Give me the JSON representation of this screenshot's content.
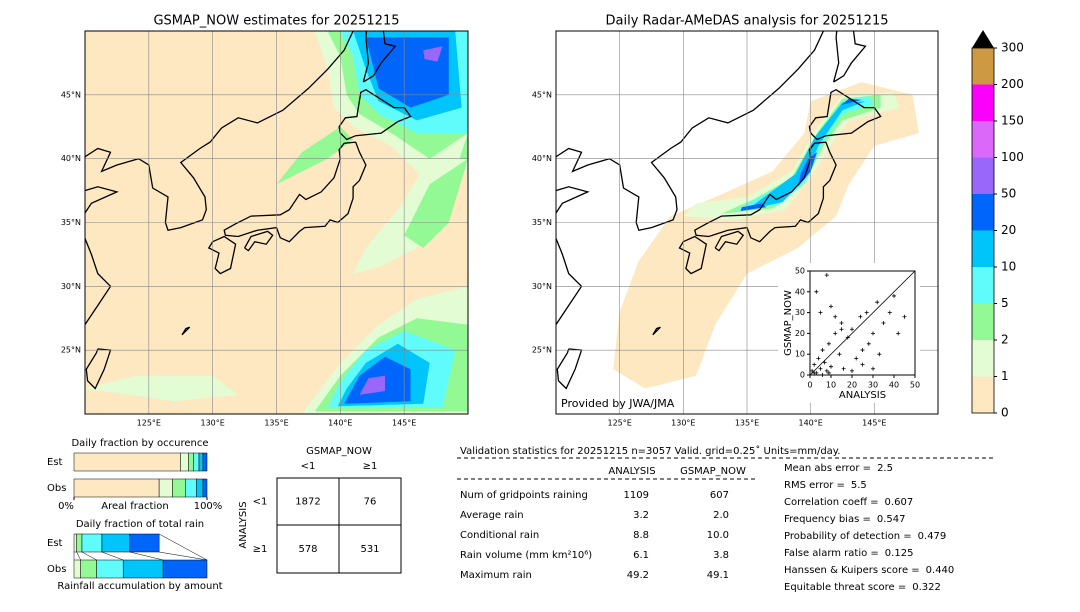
{
  "map_axes": {
    "xlim": [
      120,
      150
    ],
    "ylim": [
      20,
      50
    ],
    "xticks": [
      {
        "value": 125,
        "label": "125°E"
      },
      {
        "value": 130,
        "label": "130°E"
      },
      {
        "value": 135,
        "label": "135°E"
      },
      {
        "value": 140,
        "label": "140°E"
      },
      {
        "value": 145,
        "label": "145°E"
      }
    ],
    "yticks": [
      {
        "value": 25,
        "label": "25°N"
      },
      {
        "value": 30,
        "label": "30°N"
      },
      {
        "value": 35,
        "label": "35°N"
      },
      {
        "value": 40,
        "label": "40°N"
      },
      {
        "value": 45,
        "label": "45°N"
      }
    ],
    "grid": true
  },
  "map_left": {
    "title": "GSMAP_NOW estimates for 20251215"
  },
  "map_right": {
    "title": "Daily Radar-AMeDAS analysis for 20251215",
    "credit": "Provided by JWA/JMA"
  },
  "colorbar": {
    "levels": [
      0,
      1,
      2,
      5,
      10,
      20,
      50,
      100,
      150,
      200,
      300
    ],
    "colors": [
      "#fde8c1",
      "#e4fcd4",
      "#93f994",
      "#60fcfc",
      "#00c5fa",
      "#0066fb",
      "#9a67fb",
      "#dc67fb",
      "#fb00fb",
      "#cd9a42"
    ],
    "extend_color": "#000000"
  },
  "scatter": {
    "type": "scatter",
    "xlabel": "ANALYSIS",
    "ylabel": "GSMAP_NOW",
    "xlim": [
      0,
      50
    ],
    "ylim": [
      0,
      50
    ],
    "xticks": [
      0,
      10,
      20,
      30,
      40,
      50
    ],
    "yticks": [
      0,
      10,
      20,
      30,
      40,
      50
    ],
    "x": [
      1,
      2,
      3,
      4,
      5,
      6,
      7,
      8,
      9,
      10,
      12,
      14,
      15,
      16,
      18,
      20,
      22,
      24,
      25,
      27,
      28,
      30,
      32,
      33,
      35,
      38,
      40,
      3,
      5,
      8,
      10,
      12,
      15,
      2,
      6,
      9,
      20,
      25,
      30,
      42,
      45
    ],
    "y": [
      2,
      5,
      1,
      8,
      3,
      12,
      6,
      2,
      15,
      4,
      20,
      10,
      25,
      3,
      18,
      22,
      8,
      28,
      12,
      30,
      15,
      20,
      35,
      10,
      25,
      30,
      38,
      40,
      30,
      48,
      33,
      28,
      22,
      1,
      0,
      1,
      2,
      5,
      3,
      20,
      28
    ]
  },
  "fraction_occurrence": {
    "title": "Daily fraction by occurence",
    "xlabel": "Areal fraction",
    "xticks": [
      {
        "value": 0,
        "label": "0%"
      },
      {
        "value": 100,
        "label": "100%"
      }
    ],
    "series": [
      {
        "name": "Est",
        "values": [
          80,
          6,
          4,
          4,
          3,
          3
        ]
      },
      {
        "name": "Obs",
        "values": [
          64,
          10,
          10,
          8,
          5,
          3
        ]
      }
    ],
    "colors": [
      "#fde8c1",
      "#e4fcd4",
      "#93f994",
      "#60fcfc",
      "#00c5fa",
      "#0066fb"
    ]
  },
  "fraction_total": {
    "title": "Daily fraction of total rain",
    "xlabel": "Rainfall accumulation by amount",
    "series": [
      {
        "name": "Est",
        "values": [
          2,
          4,
          15,
          21,
          22
        ]
      },
      {
        "name": "Obs",
        "values": [
          5,
          12,
          20,
          30,
          33
        ]
      }
    ],
    "colors": [
      "#e4fcd4",
      "#93f994",
      "#60fcfc",
      "#00c5fa",
      "#0066fb"
    ]
  },
  "contingency": {
    "col_title": "GSMAP_NOW",
    "row_title": "ANALYSIS",
    "col_labels": [
      "<1",
      "≥1"
    ],
    "row_labels": [
      "<1",
      "≥1"
    ],
    "cells": [
      [
        1872,
        76
      ],
      [
        578,
        531
      ]
    ]
  },
  "validation": {
    "header": "Validation statistics for 20251215  n=3057 Valid. grid=0.25˚ Units=mm/day.",
    "columns": [
      "ANALYSIS",
      "GSMAP_NOW"
    ],
    "rows": [
      {
        "label": "Num of gridpoints raining",
        "values": [
          "1109",
          "607"
        ]
      },
      {
        "label": "Average rain",
        "values": [
          "3.2",
          "2.0"
        ]
      },
      {
        "label": "Conditional rain",
        "values": [
          "8.8",
          "10.0"
        ]
      },
      {
        "label": "Rain volume (mm km²10⁶)",
        "values": [
          "6.1",
          "3.8"
        ]
      },
      {
        "label": "Maximum rain",
        "values": [
          "49.2",
          "49.1"
        ]
      }
    ],
    "scores": [
      {
        "label": "Mean abs error =",
        "value": "2.5"
      },
      {
        "label": "RMS error =",
        "value": "5.5"
      },
      {
        "label": "Correlation coeff =",
        "value": "0.607"
      },
      {
        "label": "Frequency bias =",
        "value": "0.547"
      },
      {
        "label": "Probability of detection =",
        "value": "0.479"
      },
      {
        "label": "False alarm ratio =",
        "value": "0.125"
      },
      {
        "label": "Hanssen & Kuipers score =",
        "value": "0.440"
      },
      {
        "label": "Equitable threat score =",
        "value": "0.322"
      }
    ]
  }
}
